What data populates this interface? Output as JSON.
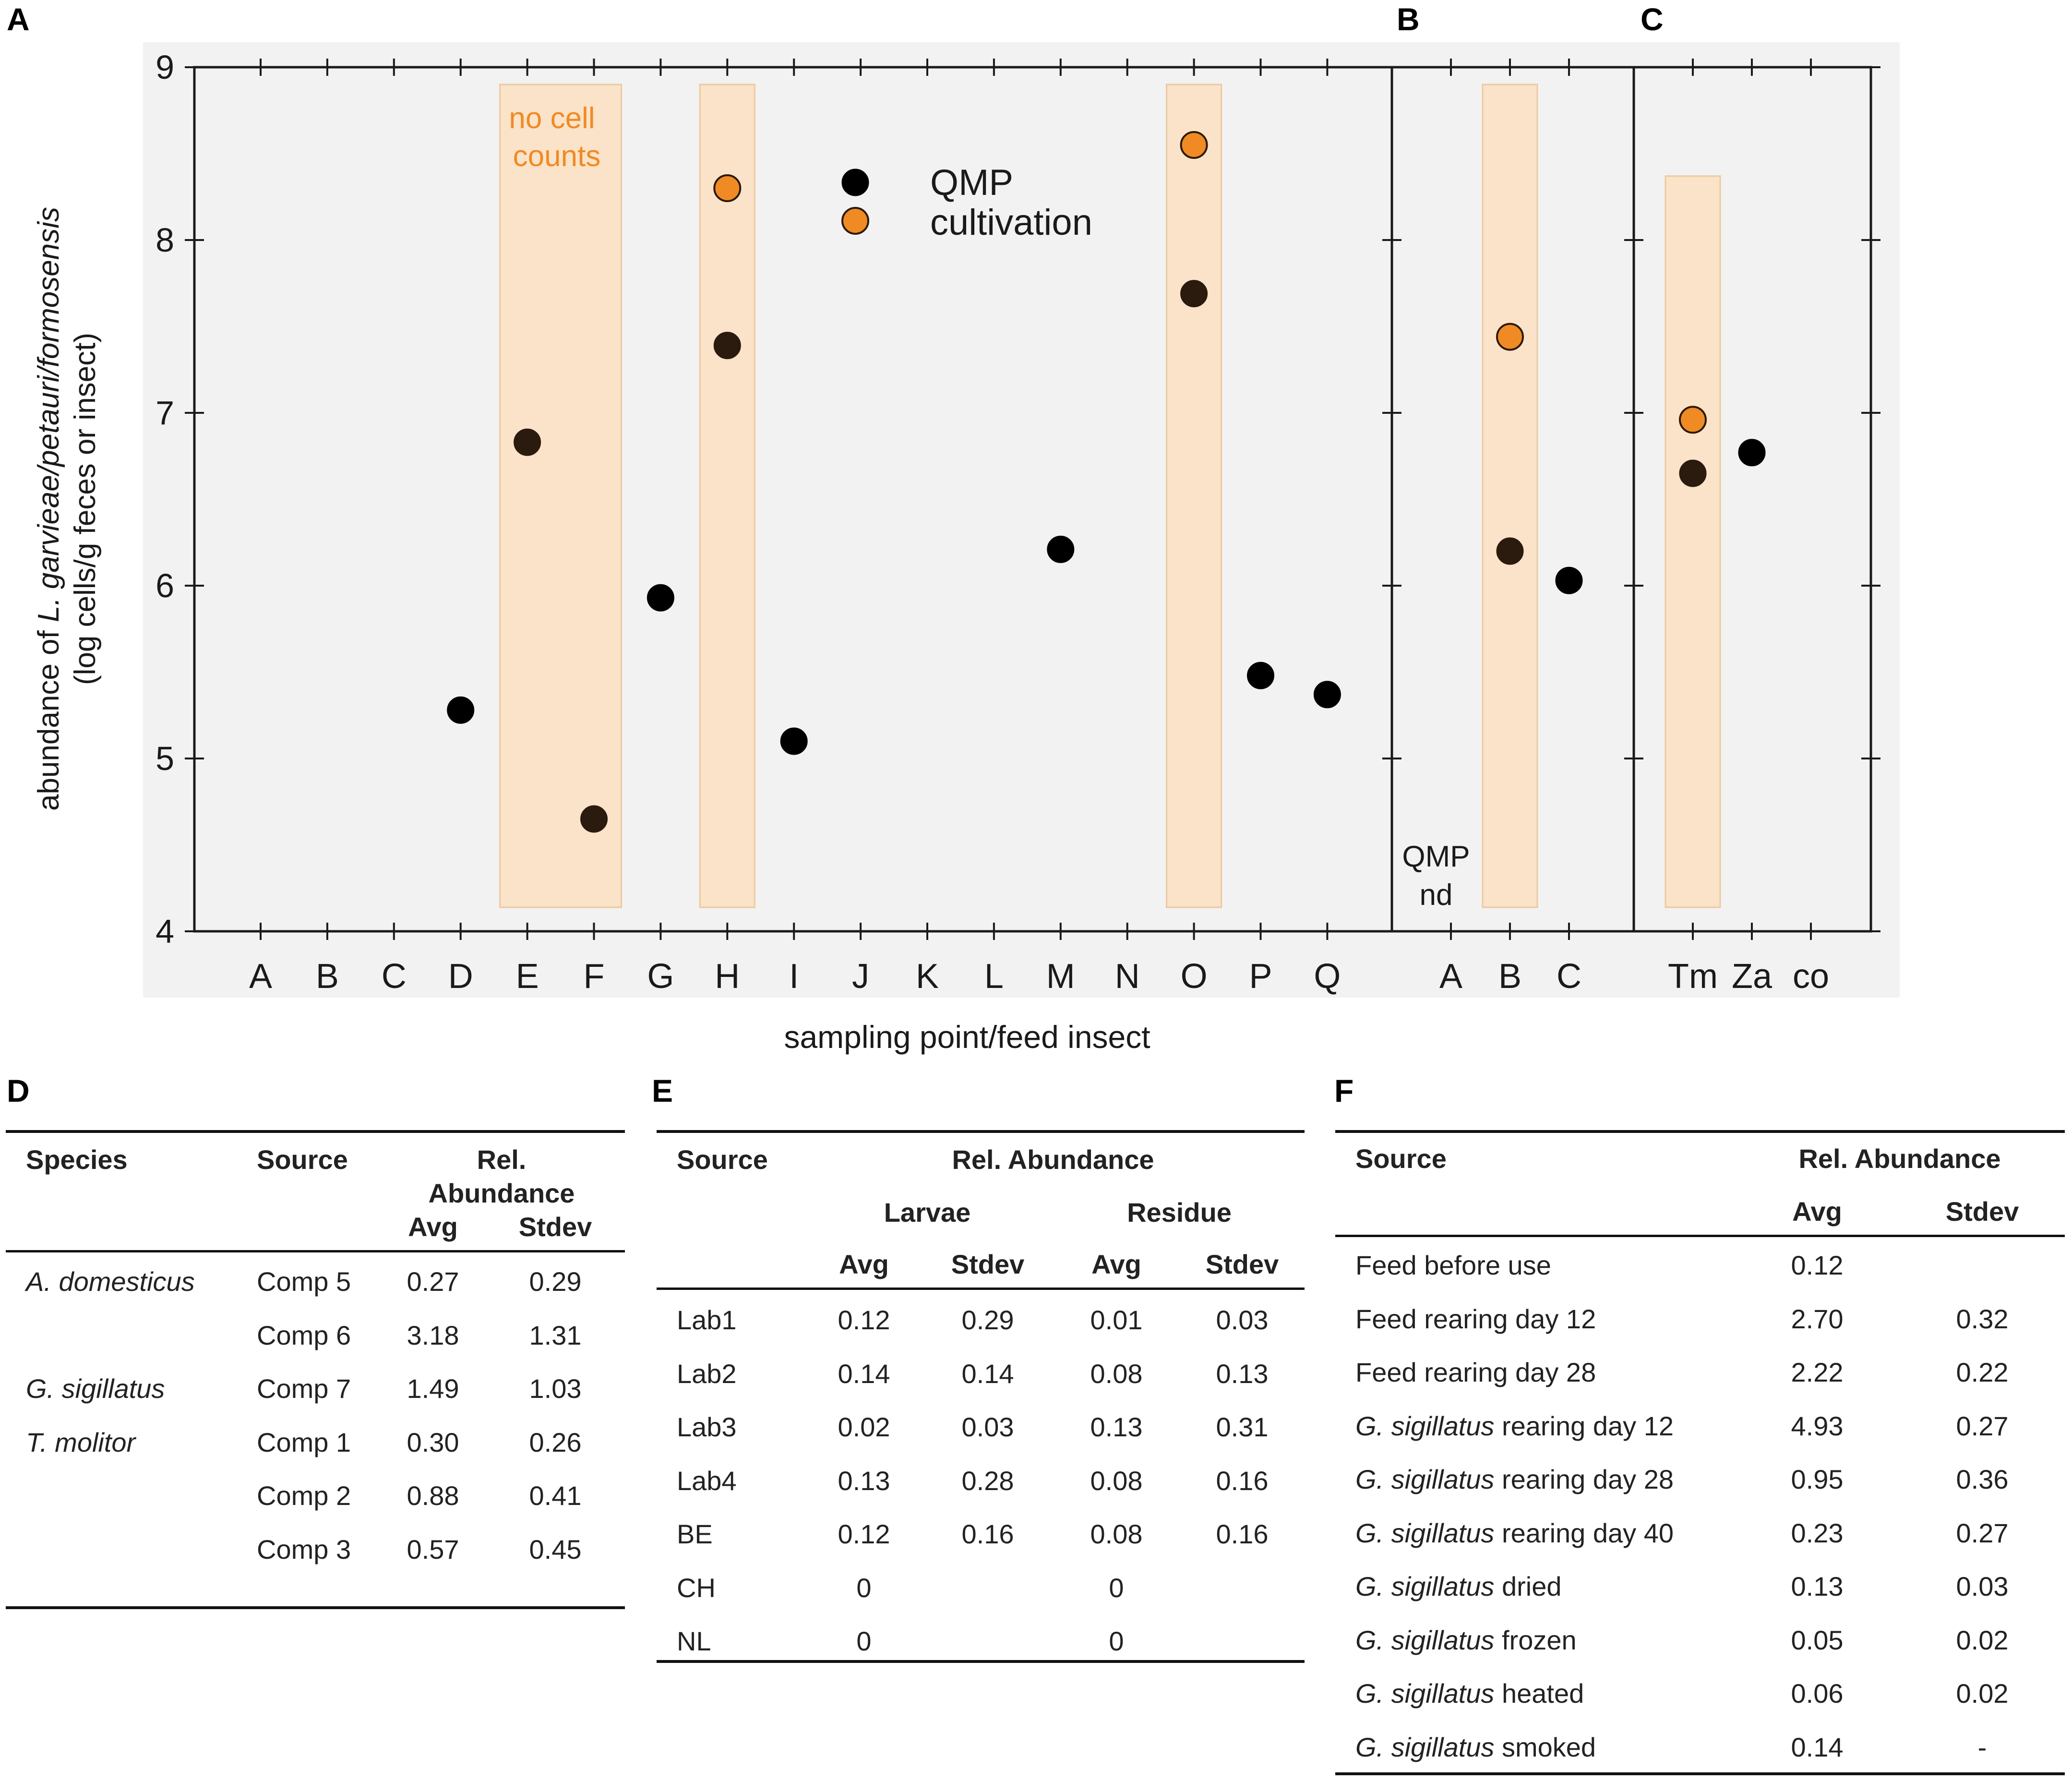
{
  "panel_labels": {
    "a": "A",
    "b": "B",
    "c": "C",
    "d": "D",
    "e": "E",
    "f": "F"
  },
  "chart_data": {
    "type": "scatter",
    "ylabel_line1_pre": "abundance of ",
    "ylabel_line1_italic": "L. garvieae/petauri/formosensis",
    "ylabel_line2": "(log cells/g feces or insect)",
    "xlabel": "sampling point/feed insect",
    "ylim": [
      4,
      9
    ],
    "yticks": [
      "4",
      "5",
      "6",
      "7",
      "8",
      "9"
    ],
    "legend": [
      {
        "name": "QMP",
        "color": "#000000"
      },
      {
        "name": "cultivation",
        "color": "#f08a24"
      }
    ],
    "highlight_color": "#fae3c8",
    "annotations": {
      "no_cell_line1": "no cell",
      "no_cell_line2": "counts",
      "qmp_nd_line1": "QMP",
      "qmp_nd_line2": "nd"
    },
    "panels": [
      {
        "id": "A",
        "categories": [
          "A",
          "B",
          "C",
          "D",
          "E",
          "F",
          "G",
          "H",
          "I",
          "J",
          "K",
          "L",
          "M",
          "N",
          "O",
          "P",
          "Q"
        ],
        "highlight": [
          {
            "from": "E",
            "to": "F",
            "top": 8.9
          },
          {
            "from": "H",
            "to": "H",
            "top": 8.9
          },
          {
            "from": "O",
            "to": "O",
            "top": 8.9
          }
        ],
        "qmp": [
          {
            "x": "D",
            "y": 5.28
          },
          {
            "x": "E",
            "y": 6.83
          },
          {
            "x": "F",
            "y": 4.65
          },
          {
            "x": "G",
            "y": 5.93
          },
          {
            "x": "H",
            "y": 7.39
          },
          {
            "x": "I",
            "y": 5.1
          },
          {
            "x": "M",
            "y": 6.21
          },
          {
            "x": "O",
            "y": 7.69
          },
          {
            "x": "P",
            "y": 5.48
          },
          {
            "x": "Q",
            "y": 5.37
          }
        ],
        "cultivation": [
          {
            "x": "H",
            "y": 8.3
          },
          {
            "x": "O",
            "y": 8.55
          }
        ]
      },
      {
        "id": "B",
        "categories": [
          "A",
          "B",
          "C"
        ],
        "highlight": [
          {
            "from": "B",
            "to": "B",
            "top": 8.9
          }
        ],
        "qmp": [
          {
            "x": "B",
            "y": 6.2
          },
          {
            "x": "C",
            "y": 6.03
          }
        ],
        "cultivation": [
          {
            "x": "B",
            "y": 7.44
          }
        ]
      },
      {
        "id": "C",
        "categories": [
          "Tm",
          "Za",
          "co"
        ],
        "highlight": [
          {
            "from": "Tm",
            "to": "Tm",
            "top": 8.37
          }
        ],
        "qmp": [
          {
            "x": "Tm",
            "y": 6.65
          },
          {
            "x": "Za",
            "y": 6.77
          }
        ],
        "cultivation": [
          {
            "x": "Tm",
            "y": 6.96
          }
        ]
      }
    ]
  },
  "table_d": {
    "headers": {
      "species": "Species",
      "source": "Source",
      "rel1": "Rel.",
      "rel2": "Abundance",
      "avg": "Avg",
      "stdev": "Stdev"
    },
    "rows": [
      {
        "species": "A. domesticus",
        "source": "Comp 5",
        "avg": "0.27",
        "stdev": "0.29"
      },
      {
        "species": "",
        "source": "Comp 6",
        "avg": "3.18",
        "stdev": "1.31"
      },
      {
        "species": "G. sigillatus",
        "source": "Comp 7",
        "avg": "1.49",
        "stdev": "1.03"
      },
      {
        "species": "T. molitor",
        "source": "Comp 1",
        "avg": "0.30",
        "stdev": "0.26"
      },
      {
        "species": "",
        "source": "Comp 2",
        "avg": "0.88",
        "stdev": "0.41"
      },
      {
        "species": "",
        "source": "Comp 3",
        "avg": "0.57",
        "stdev": "0.45"
      }
    ]
  },
  "table_e": {
    "headers": {
      "source": "Source",
      "rel": "Rel. Abundance",
      "larvae": "Larvae",
      "residue": "Residue",
      "avg": "Avg",
      "stdev": "Stdev"
    },
    "rows": [
      {
        "source": "Lab1",
        "l_avg": "0.12",
        "l_stdev": "0.29",
        "r_avg": "0.01",
        "r_stdev": "0.03"
      },
      {
        "source": "Lab2",
        "l_avg": "0.14",
        "l_stdev": "0.14",
        "r_avg": "0.08",
        "r_stdev": "0.13"
      },
      {
        "source": "Lab3",
        "l_avg": "0.02",
        "l_stdev": "0.03",
        "r_avg": "0.13",
        "r_stdev": "0.31"
      },
      {
        "source": "Lab4",
        "l_avg": "0.13",
        "l_stdev": "0.28",
        "r_avg": "0.08",
        "r_stdev": "0.16"
      },
      {
        "source": "BE",
        "l_avg": "0.12",
        "l_stdev": "0.16",
        "r_avg": "0.08",
        "r_stdev": "0.16"
      },
      {
        "source": "CH",
        "l_avg": "0",
        "l_stdev": "",
        "r_avg": "0",
        "r_stdev": ""
      },
      {
        "source": "NL",
        "l_avg": "0",
        "l_stdev": "",
        "r_avg": "0",
        "r_stdev": ""
      }
    ]
  },
  "table_f": {
    "headers": {
      "source": "Source",
      "rel": "Rel. Abundance",
      "avg": "Avg",
      "stdev": "Stdev"
    },
    "rows": [
      {
        "italic": "",
        "plain": "Feed before use",
        "avg": "0.12",
        "stdev": ""
      },
      {
        "italic": "",
        "plain": "Feed rearing day 12",
        "avg": "2.70",
        "stdev": "0.32"
      },
      {
        "italic": "",
        "plain": "Feed rearing day 28",
        "avg": "2.22",
        "stdev": "0.22"
      },
      {
        "italic": "G. sigillatus",
        "plain": " rearing day 12",
        "avg": "4.93",
        "stdev": "0.27"
      },
      {
        "italic": "G. sigillatus",
        "plain": " rearing day 28",
        "avg": "0.95",
        "stdev": "0.36"
      },
      {
        "italic": "G. sigillatus",
        "plain": " rearing day 40",
        "avg": "0.23",
        "stdev": "0.27"
      },
      {
        "italic": "G. sigillatus",
        "plain": " dried",
        "avg": "0.13",
        "stdev": "0.03"
      },
      {
        "italic": "G. sigillatus",
        "plain": " frozen",
        "avg": "0.05",
        "stdev": "0.02"
      },
      {
        "italic": "G. sigillatus",
        "plain": " heated",
        "avg": "0.06",
        "stdev": "0.02"
      },
      {
        "italic": "G. sigillatus",
        "plain": " smoked",
        "avg": "0.14",
        "stdev": "-"
      }
    ]
  }
}
